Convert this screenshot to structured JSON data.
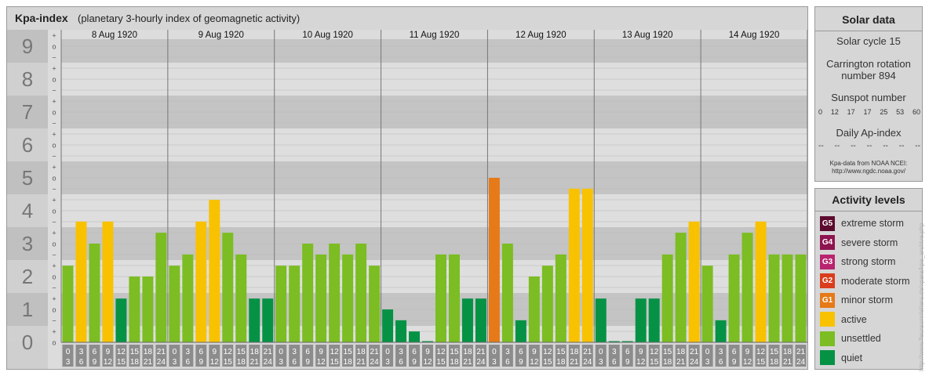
{
  "header": {
    "title": "Kpa-index",
    "subtitle": "(planetary 3-hourly index of geomagnetic activity)"
  },
  "chart_data": {
    "type": "bar",
    "title": "Kpa-index",
    "subtitle": "(planetary 3-hourly index of geomagnetic activity)",
    "ylim": [
      0,
      9
    ],
    "y_ticks": [
      "0",
      "1",
      "2",
      "3",
      "4",
      "5",
      "6",
      "7",
      "8",
      "9"
    ],
    "y_minor_labels": [
      "o",
      "+",
      "−"
    ],
    "days": [
      "8 Aug 1920",
      "9 Aug 1920",
      "10 Aug 1920",
      "11 Aug 1920",
      "12 Aug 1920",
      "13 Aug 1920",
      "14 Aug 1920"
    ],
    "hour_labels": [
      [
        "0",
        "3"
      ],
      [
        "3",
        "6"
      ],
      [
        "6",
        "9"
      ],
      [
        "9",
        "12"
      ],
      [
        "12",
        "15"
      ],
      [
        "15",
        "18"
      ],
      [
        "18",
        "21"
      ],
      [
        "21",
        "24"
      ]
    ],
    "values": [
      [
        2.33,
        3.67,
        3.0,
        3.67,
        1.33,
        2.0,
        2.0,
        3.33
      ],
      [
        2.33,
        2.67,
        3.67,
        4.33,
        3.33,
        2.67,
        1.33,
        1.33
      ],
      [
        2.33,
        2.33,
        3.0,
        2.67,
        3.0,
        2.67,
        3.0,
        2.33
      ],
      [
        1.0,
        0.67,
        0.33,
        0.0,
        2.67,
        2.67,
        1.33,
        1.33
      ],
      [
        5.0,
        3.0,
        0.67,
        2.0,
        2.33,
        2.67,
        4.67,
        4.67
      ],
      [
        1.33,
        0.0,
        0.0,
        1.33,
        1.33,
        2.67,
        3.33,
        3.67
      ],
      [
        2.33,
        0.67,
        2.67,
        3.33,
        3.67,
        2.67,
        2.67,
        2.67
      ]
    ],
    "level_colors": {
      "quiet": "#069245",
      "unsettled": "#7bbd22",
      "active": "#f8c200",
      "minor storm": "#e67a18",
      "moderate storm": "#d93d1c",
      "strong storm": "#b8246e",
      "severe storm": "#8e1450",
      "extreme storm": "#5c0b2e"
    },
    "grid": true
  },
  "solar": {
    "title": "Solar data",
    "cycle": "Solar cycle 15",
    "carrington_line1": "Carrington rotation",
    "carrington_line2": "number 894",
    "sunspot_label": "Sunspot number",
    "sunspot_values": [
      "0",
      "12",
      "17",
      "17",
      "25",
      "53",
      "60"
    ],
    "ap_label": "Daily Ap-index",
    "ap_values": [
      "--",
      "--",
      "--",
      "--",
      "--",
      "--",
      "--"
    ],
    "credit_line1": "Kpa-data from NOAA NCEI:",
    "credit_line2": "http://www.ngdc.noaa.gov/"
  },
  "activity": {
    "title": "Activity levels",
    "levels": [
      {
        "code": "G5",
        "label": "extreme storm",
        "color": "#5c0b2e"
      },
      {
        "code": "G4",
        "label": "severe storm",
        "color": "#8e1450"
      },
      {
        "code": "G3",
        "label": "strong storm",
        "color": "#b8246e"
      },
      {
        "code": "G2",
        "label": "moderate storm",
        "color": "#d93d1c"
      },
      {
        "code": "G1",
        "label": "minor storm",
        "color": "#e67a18"
      },
      {
        "code": "",
        "label": "active",
        "color": "#f8c200"
      },
      {
        "code": "",
        "label": "unsettled",
        "color": "#7bbd22"
      },
      {
        "code": "",
        "label": "quiet",
        "color": "#069245"
      }
    ]
  },
  "watermark": "http://www.fleuxsonnleltera.de/xpara/kpa_archive.php"
}
